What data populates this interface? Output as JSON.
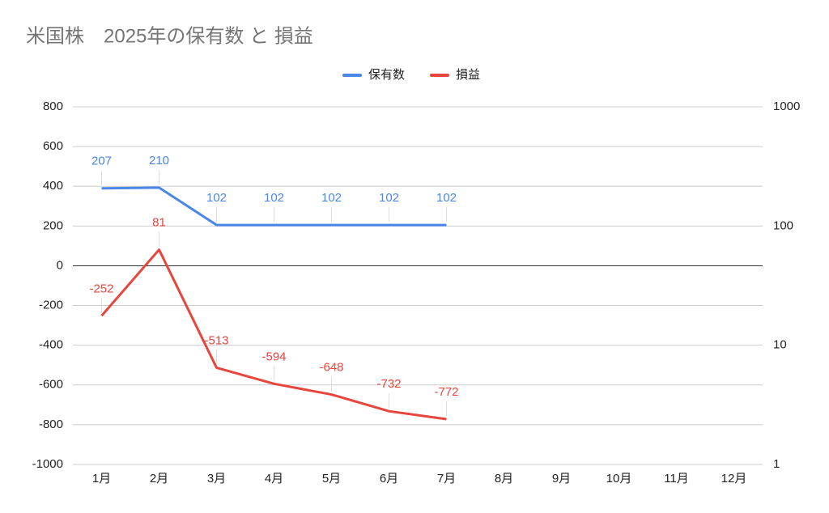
{
  "chart_data": {
    "type": "line",
    "title": "米国株　2025年の保有数 と 損益",
    "categories": [
      "1月",
      "2月",
      "3月",
      "4月",
      "5月",
      "6月",
      "7月",
      "8月",
      "9月",
      "10月",
      "11月",
      "12月"
    ],
    "series": [
      {
        "name": "保有数",
        "color": "#4a86e8",
        "axis": "y2",
        "values": [
          207,
          210,
          102,
          102,
          102,
          102,
          102,
          null,
          null,
          null,
          null,
          null
        ]
      },
      {
        "name": "損益",
        "color": "#e8453c",
        "values": [
          -252,
          81,
          -513,
          -594,
          -648,
          -732,
          -772,
          null,
          null,
          null,
          null,
          null
        ]
      }
    ],
    "ylim": [
      -1000,
      800
    ],
    "yticks": [
      -1000,
      -800,
      -600,
      -400,
      -200,
      0,
      200,
      400,
      600,
      800
    ],
    "y2lim": [
      1,
      1000
    ],
    "y2ticks": [
      1,
      10,
      100,
      1000
    ],
    "y2log": true,
    "grid": true,
    "legend": "top"
  }
}
